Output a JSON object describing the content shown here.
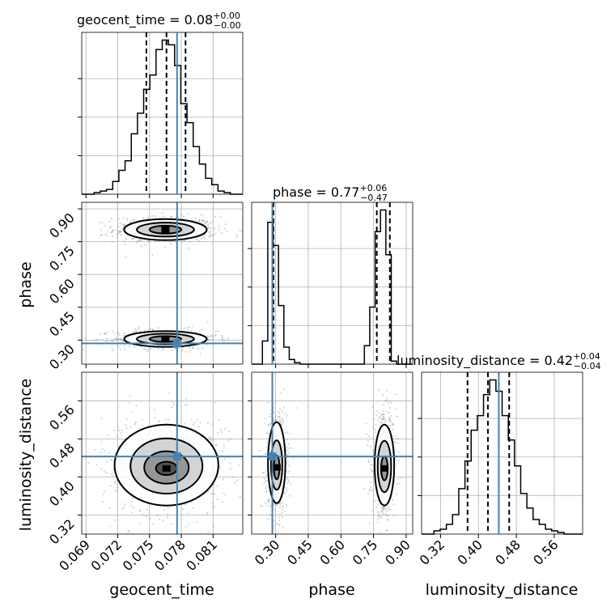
{
  "chart_data": {
    "type": "corner",
    "parameters": [
      "geocent_time",
      "phase",
      "luminosity_distance"
    ],
    "axis_labels": {
      "geocent_time": "geocent_time",
      "phase": "phase",
      "luminosity_distance": "luminosity_distance"
    },
    "titles": {
      "geocent_time": {
        "name": "geocent_time",
        "median": "0.08",
        "plus": "+0.00",
        "minus": "−0.00"
      },
      "phase": {
        "name": "phase",
        "median": "0.77",
        "plus": "+0.06",
        "minus": "−0.47"
      },
      "luminosity_distance": {
        "name": "luminosity_distance",
        "median": "0.42",
        "plus": "+0.04",
        "minus": "−0.04"
      }
    },
    "ranges": {
      "geocent_time": [
        0.0686,
        0.0838
      ],
      "phase": [
        0.19,
        0.93
      ],
      "luminosity_distance": [
        0.28,
        0.62
      ]
    },
    "ticks": {
      "geocent_time": {
        "values": [
          0.069,
          0.072,
          0.075,
          0.078,
          0.081
        ],
        "labels": [
          "0.069",
          "0.072",
          "0.075",
          "0.078",
          "0.081"
        ]
      },
      "phase": {
        "values": [
          0.3,
          0.45,
          0.6,
          0.75,
          0.9
        ],
        "labels": [
          "0.30",
          "0.45",
          "0.60",
          "0.75",
          "0.90"
        ]
      },
      "luminosity_distance": {
        "values": [
          0.32,
          0.4,
          0.48,
          0.56
        ],
        "labels": [
          "0.32",
          "0.40",
          "0.48",
          "0.56"
        ]
      }
    },
    "truths": {
      "geocent_time": 0.0776,
      "phase": 0.285,
      "luminosity_distance": 0.443
    },
    "quantiles": {
      "geocent_time": [
        0.0747,
        0.0766,
        0.0784
      ],
      "phase": [
        0.29,
        0.765,
        0.825
      ],
      "luminosity_distance": [
        0.377,
        0.42,
        0.465
      ]
    },
    "histograms": {
      "geocent_time": {
        "edges_range": [
          0.0686,
          0.0838
        ],
        "counts": [
          0,
          0,
          1,
          2,
          3,
          8,
          15,
          21,
          38,
          51,
          66,
          75,
          91,
          97,
          94,
          81,
          57,
          45,
          30,
          19,
          10,
          6,
          2,
          1,
          0,
          0
        ]
      },
      "phase": {
        "edges_range": [
          0.19,
          0.93
        ],
        "counts": [
          0,
          0,
          15,
          92,
          77,
          38,
          11,
          3,
          1,
          0,
          0,
          0,
          0,
          0,
          0,
          0,
          0,
          0,
          0,
          0,
          0,
          12,
          37,
          86,
          100,
          71,
          2,
          0,
          0,
          0
        ]
      },
      "luminosity_distance": {
        "edges_range": [
          0.28,
          0.62
        ],
        "counts": [
          0,
          0,
          2,
          3,
          6,
          12,
          28,
          45,
          64,
          73,
          86,
          95,
          88,
          73,
          58,
          42,
          25,
          16,
          9,
          6,
          3,
          2,
          1,
          0,
          0,
          0
        ]
      }
    },
    "contours_2d": {
      "phase_vs_geocent_time": [
        {
          "cx": 0.0765,
          "cy": 0.805,
          "rx": 0.0039,
          "ry": 0.048
        },
        {
          "cx": 0.0765,
          "cy": 0.805,
          "rx": 0.0027,
          "ry": 0.032
        },
        {
          "cx": 0.0765,
          "cy": 0.805,
          "rx": 0.0015,
          "ry": 0.018
        },
        {
          "cx": 0.0765,
          "cy": 0.305,
          "rx": 0.0039,
          "ry": 0.036
        },
        {
          "cx": 0.0765,
          "cy": 0.305,
          "rx": 0.0027,
          "ry": 0.024
        },
        {
          "cx": 0.0765,
          "cy": 0.305,
          "rx": 0.0015,
          "ry": 0.013
        }
      ],
      "luminosity_distance_vs_geocent_time": [
        {
          "cx": 0.0766,
          "cy": 0.425,
          "rx": 0.0049,
          "ry": 0.085
        },
        {
          "cx": 0.0766,
          "cy": 0.423,
          "rx": 0.0034,
          "ry": 0.058
        },
        {
          "cx": 0.0766,
          "cy": 0.42,
          "rx": 0.0021,
          "ry": 0.034
        },
        {
          "cx": 0.0766,
          "cy": 0.418,
          "rx": 0.001,
          "ry": 0.014
        }
      ],
      "luminosity_distance_vs_phase": [
        {
          "cx": 0.305,
          "cy": 0.43,
          "rx": 0.04,
          "ry": 0.085
        },
        {
          "cx": 0.305,
          "cy": 0.425,
          "rx": 0.026,
          "ry": 0.052
        },
        {
          "cx": 0.305,
          "cy": 0.42,
          "rx": 0.013,
          "ry": 0.025
        },
        {
          "cx": 0.8,
          "cy": 0.425,
          "rx": 0.045,
          "ry": 0.085
        },
        {
          "cx": 0.8,
          "cy": 0.422,
          "rx": 0.031,
          "ry": 0.054
        },
        {
          "cx": 0.8,
          "cy": 0.418,
          "rx": 0.015,
          "ry": 0.025
        }
      ]
    },
    "grid": true
  }
}
